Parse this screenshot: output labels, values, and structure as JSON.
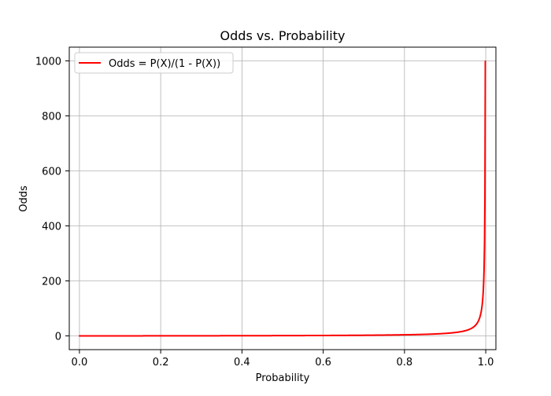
{
  "chart_data": {
    "type": "line",
    "title": "Odds vs. Probability",
    "xlabel": "Probability",
    "ylabel": "Odds",
    "xlim": [
      -0.025,
      1.025
    ],
    "ylim": [
      -50,
      1050
    ],
    "xticks": [
      0.0,
      0.2,
      0.4,
      0.6,
      0.8,
      1.0
    ],
    "xtick_labels": [
      "0.0",
      "0.2",
      "0.4",
      "0.6",
      "0.8",
      "1.0"
    ],
    "yticks": [
      0,
      200,
      400,
      600,
      800,
      1000
    ],
    "ytick_labels": [
      "0",
      "200",
      "400",
      "600",
      "800",
      "1000"
    ],
    "grid": true,
    "legend_position": "top-left",
    "series": [
      {
        "name": "Odds = P(X)/(1 - P(X))",
        "color": "#ff0000",
        "formula": "p / (1 - p)",
        "x_range": [
          0.0,
          0.999
        ],
        "y_range": [
          0,
          1000
        ]
      }
    ]
  }
}
